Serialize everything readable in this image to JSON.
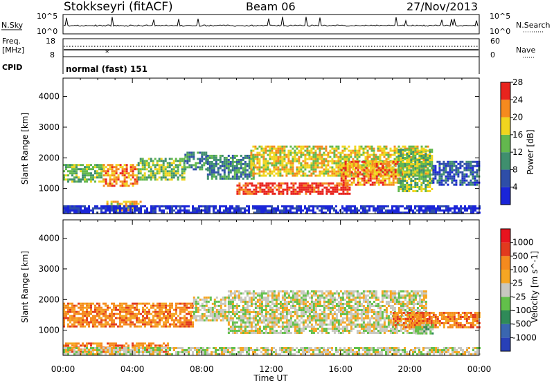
{
  "header": {
    "station": "Stokkseyri (fitACF)",
    "beam": "Beam 06",
    "date": "27/Nov/2013"
  },
  "noise_panel": {
    "left_label": "N.Sky",
    "right_label": "N.Search",
    "left_ticks": [
      "10^5",
      "10^0"
    ],
    "right_ticks": [
      "10^5",
      "10^0"
    ]
  },
  "freq_panel": {
    "left_label_1": "Freq.",
    "left_label_2": "[MHz]",
    "left_ticks": [
      "18",
      "8"
    ],
    "right_label": "Nave",
    "right_ticks": [
      "60",
      "0"
    ],
    "marker": "*"
  },
  "cpid_panel": {
    "label": "CPID",
    "text": "normal (fast) 151"
  },
  "x_axis": {
    "label": "Time UT",
    "ticks": [
      "00:00",
      "04:00",
      "08:00",
      "12:00",
      "16:00",
      "20:00",
      "00:00"
    ]
  },
  "chart_data": [
    {
      "type": "heatmap",
      "name": "power",
      "ylabel": "Slant Range [km]",
      "ylim": [
        180,
        4600
      ],
      "yticks": [
        1000,
        2000,
        3000,
        4000
      ],
      "xlim_hours": [
        0,
        24
      ],
      "colorbar": {
        "label": "Power [dB]",
        "tick_labels": [
          "4",
          "8",
          "12",
          "16",
          "20",
          "24",
          "28"
        ],
        "colors": [
          "#1a25d8",
          "#2e4ea8",
          "#3f8f6e",
          "#63b84e",
          "#f0d51e",
          "#f58a1e",
          "#e8241e"
        ]
      },
      "regions": [
        {
          "t": [
            0.0,
            2.3
          ],
          "r": [
            1200,
            1800
          ],
          "level": 3
        },
        {
          "t": [
            2.3,
            4.3
          ],
          "r": [
            1100,
            1800
          ],
          "level": 5
        },
        {
          "t": [
            4.3,
            7.0
          ],
          "r": [
            1300,
            2000
          ],
          "level": 3
        },
        {
          "t": [
            7.0,
            8.3
          ],
          "r": [
            1600,
            2200
          ],
          "level": 2
        },
        {
          "t": [
            8.3,
            11.0
          ],
          "r": [
            1300,
            2100
          ],
          "level": 2
        },
        {
          "t": [
            10.0,
            16.5
          ],
          "r": [
            800,
            1200
          ],
          "level": 6
        },
        {
          "t": [
            10.8,
            21.0
          ],
          "r": [
            1400,
            2400
          ],
          "level": 4
        },
        {
          "t": [
            16.0,
            19.5
          ],
          "r": [
            1100,
            1900
          ],
          "level": 5
        },
        {
          "t": [
            19.3,
            21.3
          ],
          "r": [
            900,
            2300
          ],
          "level": 3
        },
        {
          "t": [
            21.3,
            24.0
          ],
          "r": [
            1100,
            1900
          ],
          "level": 1
        },
        {
          "t": [
            2.5,
            4.5
          ],
          "r": [
            300,
            600
          ],
          "level": 4
        },
        {
          "t": [
            0.0,
            24.0
          ],
          "r": [
            180,
            450
          ],
          "level": 0
        }
      ]
    },
    {
      "type": "heatmap",
      "name": "velocity",
      "ylabel": "Slant Range [km]",
      "ylim": [
        180,
        4600
      ],
      "yticks": [
        1000,
        2000,
        3000,
        4000
      ],
      "xlim_hours": [
        0,
        24
      ],
      "colorbar": {
        "label": "Velocity [m s^-1]",
        "tick_labels": [
          "1000",
          "500",
          "100",
          "25",
          "-25",
          "-100",
          "-500",
          "-1000"
        ],
        "colors": [
          "#2840b8",
          "#3a66b0",
          "#2f8a58",
          "#62c04a",
          "#c8c8c0",
          "#f5a623",
          "#f58a1e",
          "#e23a1e",
          "#e8141e"
        ]
      },
      "regions": [
        {
          "t": [
            0.0,
            7.5
          ],
          "r": [
            1100,
            1900
          ],
          "level": 6
        },
        {
          "t": [
            7.5,
            9.5
          ],
          "r": [
            1300,
            2100
          ],
          "level": 4
        },
        {
          "t": [
            9.5,
            21.0
          ],
          "r": [
            900,
            2300
          ],
          "level": 4
        },
        {
          "t": [
            19.0,
            21.0
          ],
          "r": [
            1100,
            1600
          ],
          "level": 6
        },
        {
          "t": [
            20.0,
            24.0
          ],
          "r": [
            1100,
            1600
          ],
          "level": 6
        },
        {
          "t": [
            20.3,
            21.3
          ],
          "r": [
            900,
            1200
          ],
          "level": 3
        },
        {
          "t": [
            0.0,
            6.0
          ],
          "r": [
            300,
            600
          ],
          "level": 6
        },
        {
          "t": [
            0.0,
            24.0
          ],
          "r": [
            180,
            450
          ],
          "level": 4
        }
      ]
    }
  ]
}
